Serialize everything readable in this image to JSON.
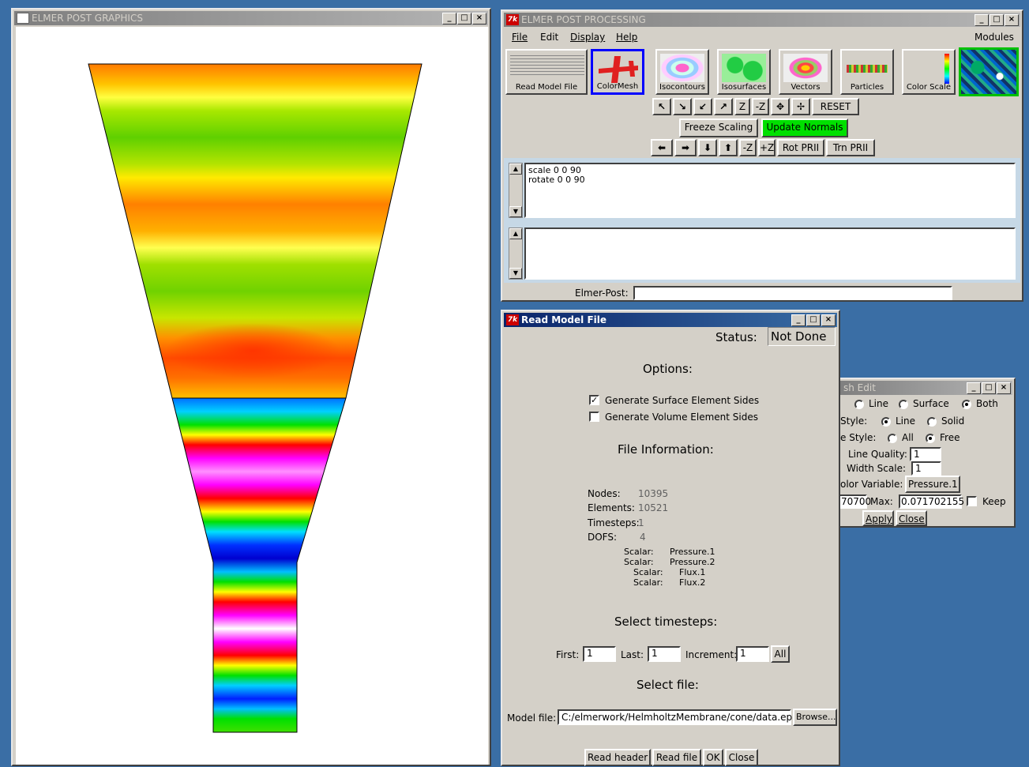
{
  "graphics_window": {
    "title": "ELMER POST GRAPHICS",
    "colors": {
      "background": "#ffffff",
      "warm_band": "#ff5a00",
      "light_band": "#ffff00",
      "cool_band": "#00c000"
    }
  },
  "post_window": {
    "title": "ELMER POST PROCESSING",
    "menu": {
      "file": "File",
      "edit": "Edit",
      "display": "Display",
      "help": "Help",
      "modules": "Modules"
    },
    "icons": [
      {
        "label": "Read Model File",
        "icon": "read-model-file-icon"
      },
      {
        "label": "ColorMesh",
        "icon": "color-mesh-icon"
      },
      {
        "label": "Isocontours",
        "icon": "isocontours-icon"
      },
      {
        "label": "Isosurfaces",
        "icon": "isosurfaces-icon"
      },
      {
        "label": "Vectors",
        "icon": "vectors-icon"
      },
      {
        "label": "Particles",
        "icon": "particles-icon"
      },
      {
        "label": "Color Scale",
        "icon": "color-scale-icon"
      }
    ],
    "toolbar": {
      "z_minus": "Z",
      "z_plus": "-Z",
      "reset": "RESET",
      "freeze_scaling": "Freeze Scaling",
      "update_normals": "Update Normals",
      "rot_minus": "-Z",
      "rot_plus": "+Z",
      "rot_prii": "Rot PRII",
      "trn_prii": "Trn PRII"
    },
    "console_lines": [
      "scale 0 0 90",
      "rotate 0 0 90"
    ],
    "elmer_post_label": "Elmer-Post:",
    "elmer_post_value": ""
  },
  "read_model": {
    "title": "Read Model File",
    "status_label": "Status:",
    "status_value": "Not Done",
    "options_heading": "Options:",
    "gen_surface": "Generate Surface Element Sides",
    "gen_volume": "Generate Volume Element Sides",
    "gen_surface_checked": true,
    "gen_volume_checked": false,
    "file_info_heading": "File Information:",
    "nodes_label": "Nodes:",
    "nodes_value": "10395",
    "elements_label": "Elements:",
    "elements_value": "10521",
    "timesteps_label": "Timesteps:",
    "timesteps_value": "1",
    "dofs_label": "DOFS:",
    "dofs_value": "4",
    "variables": [
      {
        "type": "Scalar:",
        "name": "Pressure.1"
      },
      {
        "type": "Scalar:",
        "name": "Pressure.2"
      },
      {
        "type": "Scalar:",
        "name": "Flux.1"
      },
      {
        "type": "Scalar:",
        "name": "Flux.2"
      }
    ],
    "timesteps_heading": "Select timesteps:",
    "first_label": "First:",
    "first_value": "1",
    "last_label": "Last:",
    "last_value": "1",
    "increment_label": "Increment:",
    "increment_value": "1",
    "all_label": "All",
    "select_file_heading": "Select file:",
    "model_file_label": "Model file:",
    "model_file_value": "C:/elmerwork/HelmholtzMembrane/cone/data.ep",
    "browse_label": "Browse...",
    "read_header": "Read header",
    "read_file": "Read file",
    "ok": "OK",
    "close": "Close"
  },
  "mesh_edit": {
    "title": "sh Edit",
    "line": "Line",
    "surface": "Surface",
    "both": "Both",
    "style_label": "Style:",
    "style_line": "Line",
    "style_solid": "Solid",
    "edge_style_label": "e Style:",
    "edge_all": "All",
    "edge_free": "Free",
    "line_quality_label": "Line Quality:",
    "line_quality_value": "1",
    "width_scale_label": "Width Scale:",
    "width_scale_value": "1",
    "color_var_label": "olor Variable:",
    "color_var_value": "Pressure.1",
    "min_value": "70700",
    "max_label": "Max:",
    "max_value": "0.071702155",
    "keep_label": "Keep",
    "apply": "Apply",
    "close": "Close"
  }
}
